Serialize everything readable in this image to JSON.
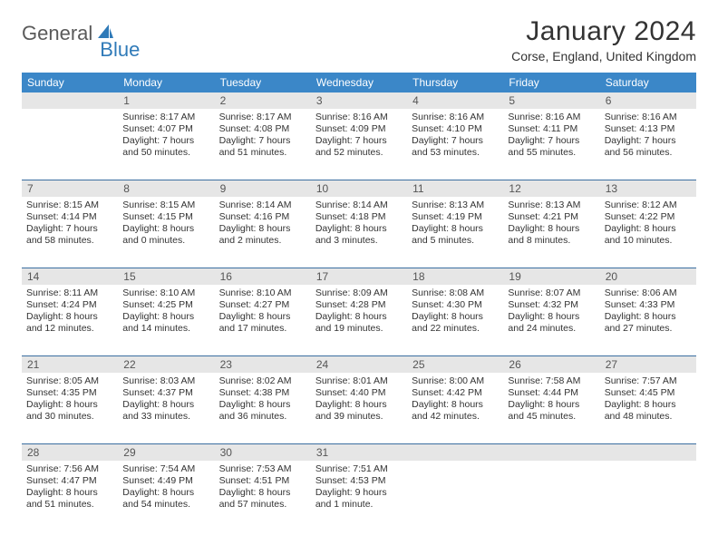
{
  "brand": {
    "part1": "General",
    "part2": "Blue"
  },
  "title": "January 2024",
  "location": "Corse, England, United Kingdom",
  "header_bg": "#3b87c8",
  "daynum_bg": "#e6e6e6",
  "rule_color": "#3b6fa0",
  "weekdays": [
    "Sunday",
    "Monday",
    "Tuesday",
    "Wednesday",
    "Thursday",
    "Friday",
    "Saturday"
  ],
  "weeks": [
    {
      "nums": [
        "",
        "1",
        "2",
        "3",
        "4",
        "5",
        "6"
      ],
      "cells": [
        null,
        {
          "sr": "Sunrise: 8:17 AM",
          "ss": "Sunset: 4:07 PM",
          "d1": "Daylight: 7 hours",
          "d2": "and 50 minutes."
        },
        {
          "sr": "Sunrise: 8:17 AM",
          "ss": "Sunset: 4:08 PM",
          "d1": "Daylight: 7 hours",
          "d2": "and 51 minutes."
        },
        {
          "sr": "Sunrise: 8:16 AM",
          "ss": "Sunset: 4:09 PM",
          "d1": "Daylight: 7 hours",
          "d2": "and 52 minutes."
        },
        {
          "sr": "Sunrise: 8:16 AM",
          "ss": "Sunset: 4:10 PM",
          "d1": "Daylight: 7 hours",
          "d2": "and 53 minutes."
        },
        {
          "sr": "Sunrise: 8:16 AM",
          "ss": "Sunset: 4:11 PM",
          "d1": "Daylight: 7 hours",
          "d2": "and 55 minutes."
        },
        {
          "sr": "Sunrise: 8:16 AM",
          "ss": "Sunset: 4:13 PM",
          "d1": "Daylight: 7 hours",
          "d2": "and 56 minutes."
        }
      ]
    },
    {
      "nums": [
        "7",
        "8",
        "9",
        "10",
        "11",
        "12",
        "13"
      ],
      "cells": [
        {
          "sr": "Sunrise: 8:15 AM",
          "ss": "Sunset: 4:14 PM",
          "d1": "Daylight: 7 hours",
          "d2": "and 58 minutes."
        },
        {
          "sr": "Sunrise: 8:15 AM",
          "ss": "Sunset: 4:15 PM",
          "d1": "Daylight: 8 hours",
          "d2": "and 0 minutes."
        },
        {
          "sr": "Sunrise: 8:14 AM",
          "ss": "Sunset: 4:16 PM",
          "d1": "Daylight: 8 hours",
          "d2": "and 2 minutes."
        },
        {
          "sr": "Sunrise: 8:14 AM",
          "ss": "Sunset: 4:18 PM",
          "d1": "Daylight: 8 hours",
          "d2": "and 3 minutes."
        },
        {
          "sr": "Sunrise: 8:13 AM",
          "ss": "Sunset: 4:19 PM",
          "d1": "Daylight: 8 hours",
          "d2": "and 5 minutes."
        },
        {
          "sr": "Sunrise: 8:13 AM",
          "ss": "Sunset: 4:21 PM",
          "d1": "Daylight: 8 hours",
          "d2": "and 8 minutes."
        },
        {
          "sr": "Sunrise: 8:12 AM",
          "ss": "Sunset: 4:22 PM",
          "d1": "Daylight: 8 hours",
          "d2": "and 10 minutes."
        }
      ]
    },
    {
      "nums": [
        "14",
        "15",
        "16",
        "17",
        "18",
        "19",
        "20"
      ],
      "cells": [
        {
          "sr": "Sunrise: 8:11 AM",
          "ss": "Sunset: 4:24 PM",
          "d1": "Daylight: 8 hours",
          "d2": "and 12 minutes."
        },
        {
          "sr": "Sunrise: 8:10 AM",
          "ss": "Sunset: 4:25 PM",
          "d1": "Daylight: 8 hours",
          "d2": "and 14 minutes."
        },
        {
          "sr": "Sunrise: 8:10 AM",
          "ss": "Sunset: 4:27 PM",
          "d1": "Daylight: 8 hours",
          "d2": "and 17 minutes."
        },
        {
          "sr": "Sunrise: 8:09 AM",
          "ss": "Sunset: 4:28 PM",
          "d1": "Daylight: 8 hours",
          "d2": "and 19 minutes."
        },
        {
          "sr": "Sunrise: 8:08 AM",
          "ss": "Sunset: 4:30 PM",
          "d1": "Daylight: 8 hours",
          "d2": "and 22 minutes."
        },
        {
          "sr": "Sunrise: 8:07 AM",
          "ss": "Sunset: 4:32 PM",
          "d1": "Daylight: 8 hours",
          "d2": "and 24 minutes."
        },
        {
          "sr": "Sunrise: 8:06 AM",
          "ss": "Sunset: 4:33 PM",
          "d1": "Daylight: 8 hours",
          "d2": "and 27 minutes."
        }
      ]
    },
    {
      "nums": [
        "21",
        "22",
        "23",
        "24",
        "25",
        "26",
        "27"
      ],
      "cells": [
        {
          "sr": "Sunrise: 8:05 AM",
          "ss": "Sunset: 4:35 PM",
          "d1": "Daylight: 8 hours",
          "d2": "and 30 minutes."
        },
        {
          "sr": "Sunrise: 8:03 AM",
          "ss": "Sunset: 4:37 PM",
          "d1": "Daylight: 8 hours",
          "d2": "and 33 minutes."
        },
        {
          "sr": "Sunrise: 8:02 AM",
          "ss": "Sunset: 4:38 PM",
          "d1": "Daylight: 8 hours",
          "d2": "and 36 minutes."
        },
        {
          "sr": "Sunrise: 8:01 AM",
          "ss": "Sunset: 4:40 PM",
          "d1": "Daylight: 8 hours",
          "d2": "and 39 minutes."
        },
        {
          "sr": "Sunrise: 8:00 AM",
          "ss": "Sunset: 4:42 PM",
          "d1": "Daylight: 8 hours",
          "d2": "and 42 minutes."
        },
        {
          "sr": "Sunrise: 7:58 AM",
          "ss": "Sunset: 4:44 PM",
          "d1": "Daylight: 8 hours",
          "d2": "and 45 minutes."
        },
        {
          "sr": "Sunrise: 7:57 AM",
          "ss": "Sunset: 4:45 PM",
          "d1": "Daylight: 8 hours",
          "d2": "and 48 minutes."
        }
      ]
    },
    {
      "nums": [
        "28",
        "29",
        "30",
        "31",
        "",
        "",
        ""
      ],
      "cells": [
        {
          "sr": "Sunrise: 7:56 AM",
          "ss": "Sunset: 4:47 PM",
          "d1": "Daylight: 8 hours",
          "d2": "and 51 minutes."
        },
        {
          "sr": "Sunrise: 7:54 AM",
          "ss": "Sunset: 4:49 PM",
          "d1": "Daylight: 8 hours",
          "d2": "and 54 minutes."
        },
        {
          "sr": "Sunrise: 7:53 AM",
          "ss": "Sunset: 4:51 PM",
          "d1": "Daylight: 8 hours",
          "d2": "and 57 minutes."
        },
        {
          "sr": "Sunrise: 7:51 AM",
          "ss": "Sunset: 4:53 PM",
          "d1": "Daylight: 9 hours",
          "d2": "and 1 minute."
        },
        null,
        null,
        null
      ]
    }
  ]
}
